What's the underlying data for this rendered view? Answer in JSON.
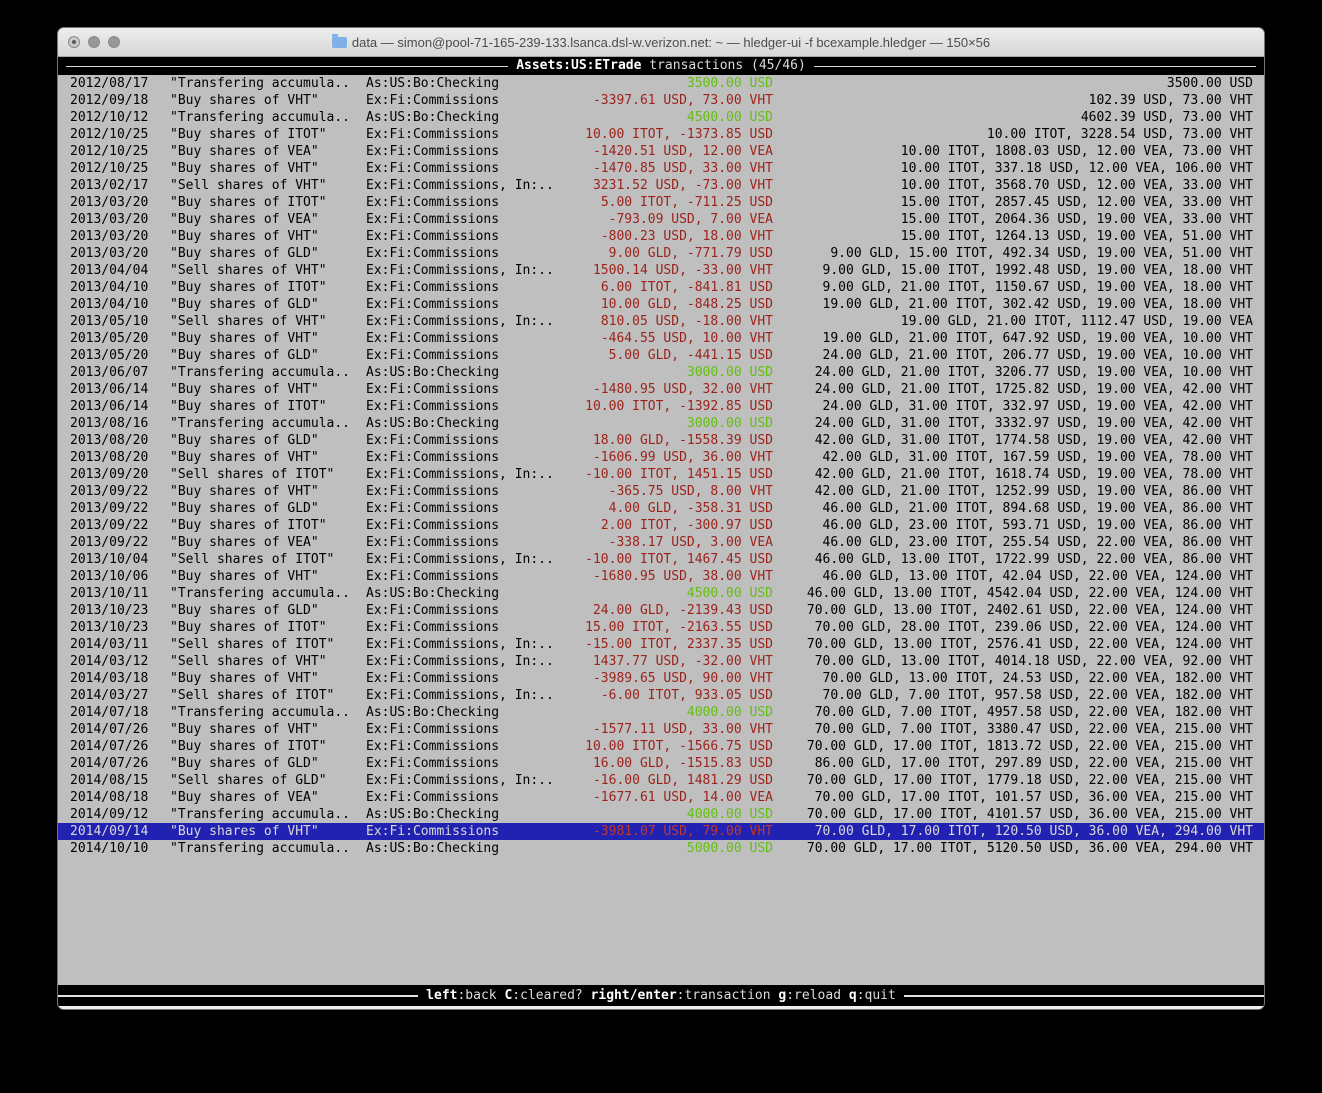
{
  "window": {
    "title": "data — simon@pool-71-165-239-133.lsanca.dsl-w.verizon.net: ~ — hledger-ui -f bcexample.hledger — 150×56"
  },
  "screen_header": {
    "account": "Assets:US:ETrade",
    "rest": " transactions (45/46)"
  },
  "statusbar": {
    "hints": [
      {
        "key": "left",
        "label": ":back "
      },
      {
        "key": "C",
        "label": ":cleared? "
      },
      {
        "key": "right/enter",
        "label": ":transaction "
      },
      {
        "key": "g",
        "label": ":reload "
      },
      {
        "key": "q",
        "label": ":quit"
      }
    ]
  },
  "colors": {
    "positive_amount": "#64be14",
    "negative_amount": "#9c231c",
    "selected_row_bg": "#2121b2",
    "terminal_bg": "#bfbfbf"
  },
  "transactions": [
    {
      "date": "2012/08/17",
      "description": "\"Transfering accumula..",
      "accounts": "As:US:Bo:Checking",
      "amount": "3500.00 USD",
      "amount_sign": "pos",
      "balance": "3500.00 USD",
      "selected": false
    },
    {
      "date": "2012/09/18",
      "description": "\"Buy shares of VHT\"",
      "accounts": "Ex:Fi:Commissions",
      "amount": "-3397.61 USD, 73.00 VHT",
      "amount_sign": "neg",
      "balance": "102.39 USD, 73.00 VHT",
      "selected": false
    },
    {
      "date": "2012/10/12",
      "description": "\"Transfering accumula..",
      "accounts": "As:US:Bo:Checking",
      "amount": "4500.00 USD",
      "amount_sign": "pos",
      "balance": "4602.39 USD, 73.00 VHT",
      "selected": false
    },
    {
      "date": "2012/10/25",
      "description": "\"Buy shares of ITOT\"",
      "accounts": "Ex:Fi:Commissions",
      "amount": "10.00 ITOT, -1373.85 USD",
      "amount_sign": "neg",
      "balance": "10.00 ITOT, 3228.54 USD, 73.00 VHT",
      "selected": false
    },
    {
      "date": "2012/10/25",
      "description": "\"Buy shares of VEA\"",
      "accounts": "Ex:Fi:Commissions",
      "amount": "-1420.51 USD, 12.00 VEA",
      "amount_sign": "neg",
      "balance": "10.00 ITOT, 1808.03 USD, 12.00 VEA, 73.00 VHT",
      "selected": false
    },
    {
      "date": "2012/10/25",
      "description": "\"Buy shares of VHT\"",
      "accounts": "Ex:Fi:Commissions",
      "amount": "-1470.85 USD, 33.00 VHT",
      "amount_sign": "neg",
      "balance": "10.00 ITOT, 337.18 USD, 12.00 VEA, 106.00 VHT",
      "selected": false
    },
    {
      "date": "2013/02/17",
      "description": "\"Sell shares of VHT\"",
      "accounts": "Ex:Fi:Commissions, In:..",
      "amount": "3231.52 USD, -73.00 VHT",
      "amount_sign": "neg",
      "balance": "10.00 ITOT, 3568.70 USD, 12.00 VEA, 33.00 VHT",
      "selected": false
    },
    {
      "date": "2013/03/20",
      "description": "\"Buy shares of ITOT\"",
      "accounts": "Ex:Fi:Commissions",
      "amount": "5.00 ITOT, -711.25 USD",
      "amount_sign": "neg",
      "balance": "15.00 ITOT, 2857.45 USD, 12.00 VEA, 33.00 VHT",
      "selected": false
    },
    {
      "date": "2013/03/20",
      "description": "\"Buy shares of VEA\"",
      "accounts": "Ex:Fi:Commissions",
      "amount": "-793.09 USD, 7.00 VEA",
      "amount_sign": "neg",
      "balance": "15.00 ITOT, 2064.36 USD, 19.00 VEA, 33.00 VHT",
      "selected": false
    },
    {
      "date": "2013/03/20",
      "description": "\"Buy shares of VHT\"",
      "accounts": "Ex:Fi:Commissions",
      "amount": "-800.23 USD, 18.00 VHT",
      "amount_sign": "neg",
      "balance": "15.00 ITOT, 1264.13 USD, 19.00 VEA, 51.00 VHT",
      "selected": false
    },
    {
      "date": "2013/03/20",
      "description": "\"Buy shares of GLD\"",
      "accounts": "Ex:Fi:Commissions",
      "amount": "9.00 GLD, -771.79 USD",
      "amount_sign": "neg",
      "balance": "9.00 GLD, 15.00 ITOT, 492.34 USD, 19.00 VEA, 51.00 VHT",
      "selected": false
    },
    {
      "date": "2013/04/04",
      "description": "\"Sell shares of VHT\"",
      "accounts": "Ex:Fi:Commissions, In:..",
      "amount": "1500.14 USD, -33.00 VHT",
      "amount_sign": "neg",
      "balance": "9.00 GLD, 15.00 ITOT, 1992.48 USD, 19.00 VEA, 18.00 VHT",
      "selected": false
    },
    {
      "date": "2013/04/10",
      "description": "\"Buy shares of ITOT\"",
      "accounts": "Ex:Fi:Commissions",
      "amount": "6.00 ITOT, -841.81 USD",
      "amount_sign": "neg",
      "balance": "9.00 GLD, 21.00 ITOT, 1150.67 USD, 19.00 VEA, 18.00 VHT",
      "selected": false
    },
    {
      "date": "2013/04/10",
      "description": "\"Buy shares of GLD\"",
      "accounts": "Ex:Fi:Commissions",
      "amount": "10.00 GLD, -848.25 USD",
      "amount_sign": "neg",
      "balance": "19.00 GLD, 21.00 ITOT, 302.42 USD, 19.00 VEA, 18.00 VHT",
      "selected": false
    },
    {
      "date": "2013/05/10",
      "description": "\"Sell shares of VHT\"",
      "accounts": "Ex:Fi:Commissions, In:..",
      "amount": "810.05 USD, -18.00 VHT",
      "amount_sign": "neg",
      "balance": "19.00 GLD, 21.00 ITOT, 1112.47 USD, 19.00 VEA",
      "selected": false
    },
    {
      "date": "2013/05/20",
      "description": "\"Buy shares of VHT\"",
      "accounts": "Ex:Fi:Commissions",
      "amount": "-464.55 USD, 10.00 VHT",
      "amount_sign": "neg",
      "balance": "19.00 GLD, 21.00 ITOT, 647.92 USD, 19.00 VEA, 10.00 VHT",
      "selected": false
    },
    {
      "date": "2013/05/20",
      "description": "\"Buy shares of GLD\"",
      "accounts": "Ex:Fi:Commissions",
      "amount": "5.00 GLD, -441.15 USD",
      "amount_sign": "neg",
      "balance": "24.00 GLD, 21.00 ITOT, 206.77 USD, 19.00 VEA, 10.00 VHT",
      "selected": false
    },
    {
      "date": "2013/06/07",
      "description": "\"Transfering accumula..",
      "accounts": "As:US:Bo:Checking",
      "amount": "3000.00 USD",
      "amount_sign": "pos",
      "balance": "24.00 GLD, 21.00 ITOT, 3206.77 USD, 19.00 VEA, 10.00 VHT",
      "selected": false
    },
    {
      "date": "2013/06/14",
      "description": "\"Buy shares of VHT\"",
      "accounts": "Ex:Fi:Commissions",
      "amount": "-1480.95 USD, 32.00 VHT",
      "amount_sign": "neg",
      "balance": "24.00 GLD, 21.00 ITOT, 1725.82 USD, 19.00 VEA, 42.00 VHT",
      "selected": false
    },
    {
      "date": "2013/06/14",
      "description": "\"Buy shares of ITOT\"",
      "accounts": "Ex:Fi:Commissions",
      "amount": "10.00 ITOT, -1392.85 USD",
      "amount_sign": "neg",
      "balance": "24.00 GLD, 31.00 ITOT, 332.97 USD, 19.00 VEA, 42.00 VHT",
      "selected": false
    },
    {
      "date": "2013/08/16",
      "description": "\"Transfering accumula..",
      "accounts": "As:US:Bo:Checking",
      "amount": "3000.00 USD",
      "amount_sign": "pos",
      "balance": "24.00 GLD, 31.00 ITOT, 3332.97 USD, 19.00 VEA, 42.00 VHT",
      "selected": false
    },
    {
      "date": "2013/08/20",
      "description": "\"Buy shares of GLD\"",
      "accounts": "Ex:Fi:Commissions",
      "amount": "18.00 GLD, -1558.39 USD",
      "amount_sign": "neg",
      "balance": "42.00 GLD, 31.00 ITOT, 1774.58 USD, 19.00 VEA, 42.00 VHT",
      "selected": false
    },
    {
      "date": "2013/08/20",
      "description": "\"Buy shares of VHT\"",
      "accounts": "Ex:Fi:Commissions",
      "amount": "-1606.99 USD, 36.00 VHT",
      "amount_sign": "neg",
      "balance": "42.00 GLD, 31.00 ITOT, 167.59 USD, 19.00 VEA, 78.00 VHT",
      "selected": false
    },
    {
      "date": "2013/09/20",
      "description": "\"Sell shares of ITOT\"",
      "accounts": "Ex:Fi:Commissions, In:..",
      "amount": "-10.00 ITOT, 1451.15 USD",
      "amount_sign": "neg",
      "balance": "42.00 GLD, 21.00 ITOT, 1618.74 USD, 19.00 VEA, 78.00 VHT",
      "selected": false
    },
    {
      "date": "2013/09/22",
      "description": "\"Buy shares of VHT\"",
      "accounts": "Ex:Fi:Commissions",
      "amount": "-365.75 USD, 8.00 VHT",
      "amount_sign": "neg",
      "balance": "42.00 GLD, 21.00 ITOT, 1252.99 USD, 19.00 VEA, 86.00 VHT",
      "selected": false
    },
    {
      "date": "2013/09/22",
      "description": "\"Buy shares of GLD\"",
      "accounts": "Ex:Fi:Commissions",
      "amount": "4.00 GLD, -358.31 USD",
      "amount_sign": "neg",
      "balance": "46.00 GLD, 21.00 ITOT, 894.68 USD, 19.00 VEA, 86.00 VHT",
      "selected": false
    },
    {
      "date": "2013/09/22",
      "description": "\"Buy shares of ITOT\"",
      "accounts": "Ex:Fi:Commissions",
      "amount": "2.00 ITOT, -300.97 USD",
      "amount_sign": "neg",
      "balance": "46.00 GLD, 23.00 ITOT, 593.71 USD, 19.00 VEA, 86.00 VHT",
      "selected": false
    },
    {
      "date": "2013/09/22",
      "description": "\"Buy shares of VEA\"",
      "accounts": "Ex:Fi:Commissions",
      "amount": "-338.17 USD, 3.00 VEA",
      "amount_sign": "neg",
      "balance": "46.00 GLD, 23.00 ITOT, 255.54 USD, 22.00 VEA, 86.00 VHT",
      "selected": false
    },
    {
      "date": "2013/10/04",
      "description": "\"Sell shares of ITOT\"",
      "accounts": "Ex:Fi:Commissions, In:..",
      "amount": "-10.00 ITOT, 1467.45 USD",
      "amount_sign": "neg",
      "balance": "46.00 GLD, 13.00 ITOT, 1722.99 USD, 22.00 VEA, 86.00 VHT",
      "selected": false
    },
    {
      "date": "2013/10/06",
      "description": "\"Buy shares of VHT\"",
      "accounts": "Ex:Fi:Commissions",
      "amount": "-1680.95 USD, 38.00 VHT",
      "amount_sign": "neg",
      "balance": "46.00 GLD, 13.00 ITOT, 42.04 USD, 22.00 VEA, 124.00 VHT",
      "selected": false
    },
    {
      "date": "2013/10/11",
      "description": "\"Transfering accumula..",
      "accounts": "As:US:Bo:Checking",
      "amount": "4500.00 USD",
      "amount_sign": "pos",
      "balance": "46.00 GLD, 13.00 ITOT, 4542.04 USD, 22.00 VEA, 124.00 VHT",
      "selected": false
    },
    {
      "date": "2013/10/23",
      "description": "\"Buy shares of GLD\"",
      "accounts": "Ex:Fi:Commissions",
      "amount": "24.00 GLD, -2139.43 USD",
      "amount_sign": "neg",
      "balance": "70.00 GLD, 13.00 ITOT, 2402.61 USD, 22.00 VEA, 124.00 VHT",
      "selected": false
    },
    {
      "date": "2013/10/23",
      "description": "\"Buy shares of ITOT\"",
      "accounts": "Ex:Fi:Commissions",
      "amount": "15.00 ITOT, -2163.55 USD",
      "amount_sign": "neg",
      "balance": "70.00 GLD, 28.00 ITOT, 239.06 USD, 22.00 VEA, 124.00 VHT",
      "selected": false
    },
    {
      "date": "2014/03/11",
      "description": "\"Sell shares of ITOT\"",
      "accounts": "Ex:Fi:Commissions, In:..",
      "amount": "-15.00 ITOT, 2337.35 USD",
      "amount_sign": "neg",
      "balance": "70.00 GLD, 13.00 ITOT, 2576.41 USD, 22.00 VEA, 124.00 VHT",
      "selected": false
    },
    {
      "date": "2014/03/12",
      "description": "\"Sell shares of VHT\"",
      "accounts": "Ex:Fi:Commissions, In:..",
      "amount": "1437.77 USD, -32.00 VHT",
      "amount_sign": "neg",
      "balance": "70.00 GLD, 13.00 ITOT, 4014.18 USD, 22.00 VEA, 92.00 VHT",
      "selected": false
    },
    {
      "date": "2014/03/18",
      "description": "\"Buy shares of VHT\"",
      "accounts": "Ex:Fi:Commissions",
      "amount": "-3989.65 USD, 90.00 VHT",
      "amount_sign": "neg",
      "balance": "70.00 GLD, 13.00 ITOT, 24.53 USD, 22.00 VEA, 182.00 VHT",
      "selected": false
    },
    {
      "date": "2014/03/27",
      "description": "\"Sell shares of ITOT\"",
      "accounts": "Ex:Fi:Commissions, In:..",
      "amount": "-6.00 ITOT, 933.05 USD",
      "amount_sign": "neg",
      "balance": "70.00 GLD, 7.00 ITOT, 957.58 USD, 22.00 VEA, 182.00 VHT",
      "selected": false
    },
    {
      "date": "2014/07/18",
      "description": "\"Transfering accumula..",
      "accounts": "As:US:Bo:Checking",
      "amount": "4000.00 USD",
      "amount_sign": "pos",
      "balance": "70.00 GLD, 7.00 ITOT, 4957.58 USD, 22.00 VEA, 182.00 VHT",
      "selected": false
    },
    {
      "date": "2014/07/26",
      "description": "\"Buy shares of VHT\"",
      "accounts": "Ex:Fi:Commissions",
      "amount": "-1577.11 USD, 33.00 VHT",
      "amount_sign": "neg",
      "balance": "70.00 GLD, 7.00 ITOT, 3380.47 USD, 22.00 VEA, 215.00 VHT",
      "selected": false
    },
    {
      "date": "2014/07/26",
      "description": "\"Buy shares of ITOT\"",
      "accounts": "Ex:Fi:Commissions",
      "amount": "10.00 ITOT, -1566.75 USD",
      "amount_sign": "neg",
      "balance": "70.00 GLD, 17.00 ITOT, 1813.72 USD, 22.00 VEA, 215.00 VHT",
      "selected": false
    },
    {
      "date": "2014/07/26",
      "description": "\"Buy shares of GLD\"",
      "accounts": "Ex:Fi:Commissions",
      "amount": "16.00 GLD, -1515.83 USD",
      "amount_sign": "neg",
      "balance": "86.00 GLD, 17.00 ITOT, 297.89 USD, 22.00 VEA, 215.00 VHT",
      "selected": false
    },
    {
      "date": "2014/08/15",
      "description": "\"Sell shares of GLD\"",
      "accounts": "Ex:Fi:Commissions, In:..",
      "amount": "-16.00 GLD, 1481.29 USD",
      "amount_sign": "neg",
      "balance": "70.00 GLD, 17.00 ITOT, 1779.18 USD, 22.00 VEA, 215.00 VHT",
      "selected": false
    },
    {
      "date": "2014/08/18",
      "description": "\"Buy shares of VEA\"",
      "accounts": "Ex:Fi:Commissions",
      "amount": "-1677.61 USD, 14.00 VEA",
      "amount_sign": "neg",
      "balance": "70.00 GLD, 17.00 ITOT, 101.57 USD, 36.00 VEA, 215.00 VHT",
      "selected": false
    },
    {
      "date": "2014/09/12",
      "description": "\"Transfering accumula..",
      "accounts": "As:US:Bo:Checking",
      "amount": "4000.00 USD",
      "amount_sign": "pos",
      "balance": "70.00 GLD, 17.00 ITOT, 4101.57 USD, 36.00 VEA, 215.00 VHT",
      "selected": false
    },
    {
      "date": "2014/09/14",
      "description": "\"Buy shares of VHT\"",
      "accounts": "Ex:Fi:Commissions",
      "amount": "-3981.07 USD, 79.00 VHT",
      "amount_sign": "neg",
      "balance": "70.00 GLD, 17.00 ITOT, 120.50 USD, 36.00 VEA, 294.00 VHT",
      "selected": true
    },
    {
      "date": "2014/10/10",
      "description": "\"Transfering accumula..",
      "accounts": "As:US:Bo:Checking",
      "amount": "5000.00 USD",
      "amount_sign": "pos",
      "balance": "70.00 GLD, 17.00 ITOT, 5120.50 USD, 36.00 VEA, 294.00 VHT",
      "selected": false
    }
  ]
}
